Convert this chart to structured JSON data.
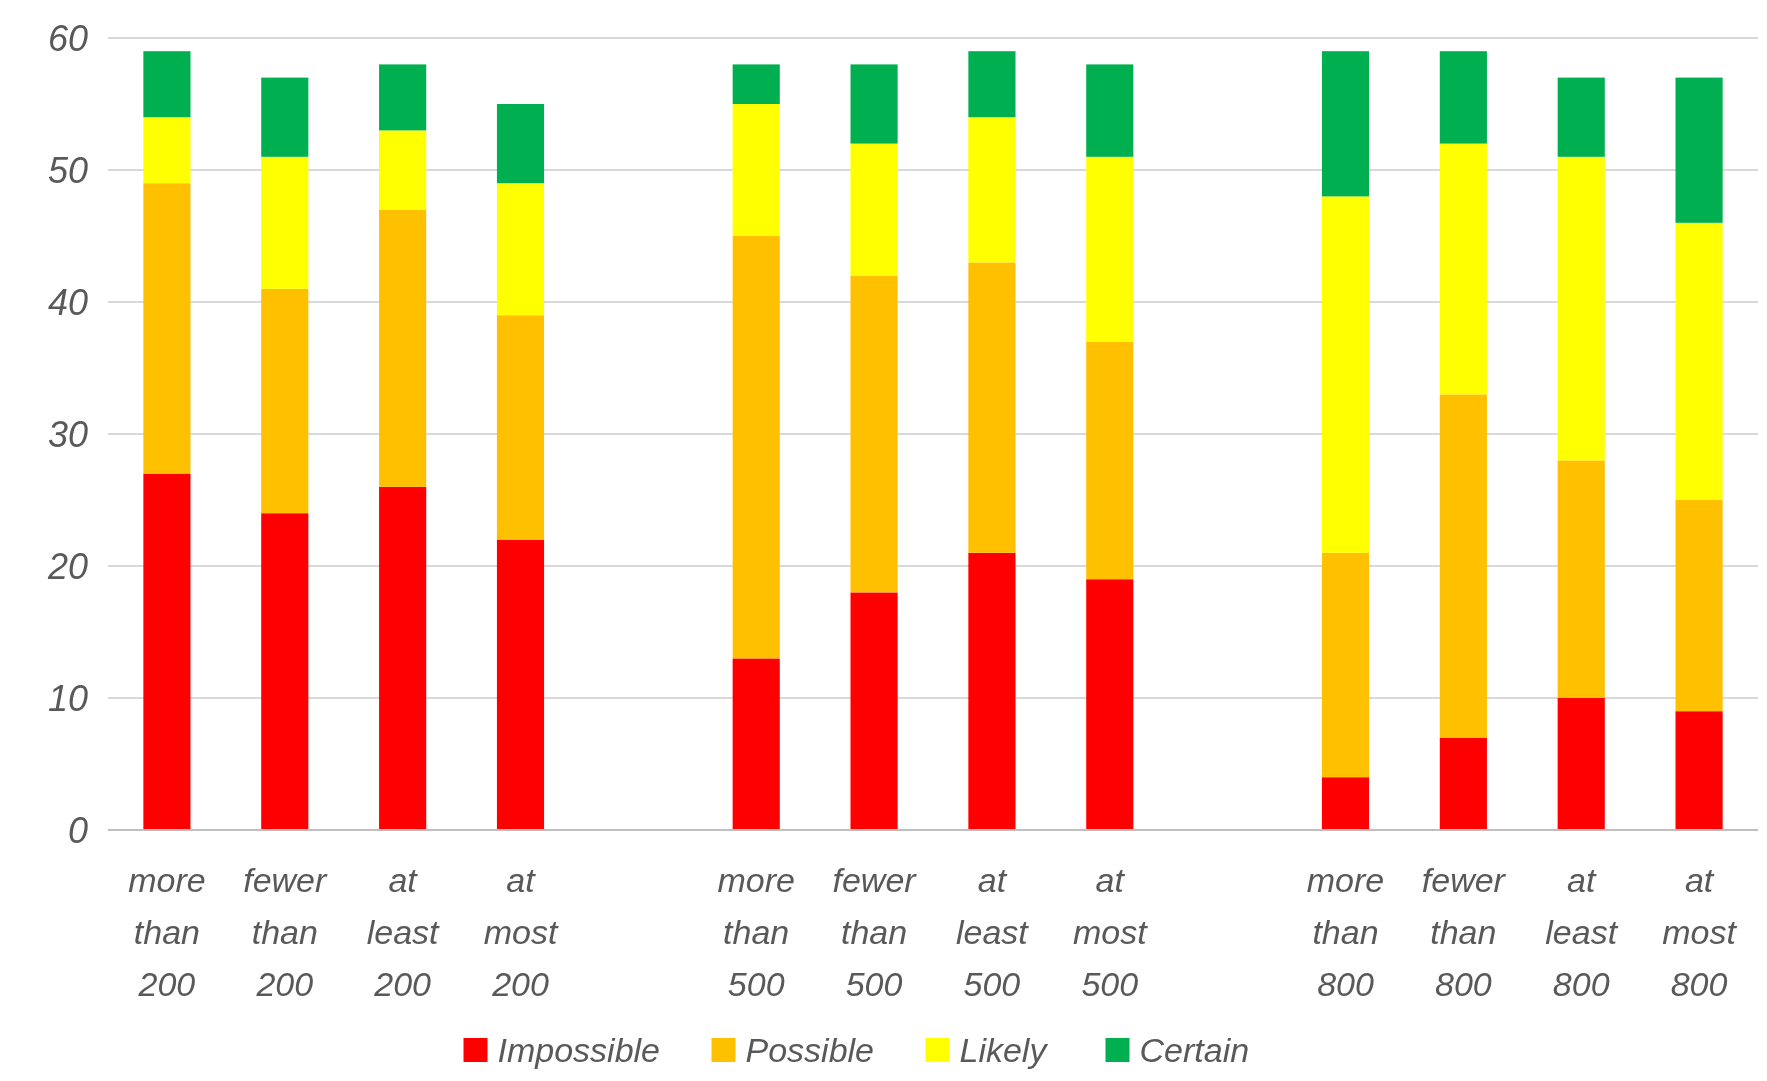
{
  "chart_data": {
    "type": "bar",
    "stacked": true,
    "categories": [
      "more than 200",
      "fewer than 200",
      "at least 200",
      "at most 200",
      null,
      "more than 500",
      "fewer than 500",
      "at least 500",
      "at most 500",
      null,
      "more than 800",
      "fewer than 800",
      "at least 800",
      "at most 800"
    ],
    "series": [
      {
        "name": "Impossible",
        "color": "#ff0000",
        "values": [
          27,
          24,
          26,
          22,
          null,
          13,
          18,
          21,
          19,
          null,
          4,
          7,
          10,
          9
        ]
      },
      {
        "name": "Possible",
        "color": "#ffc000",
        "values": [
          22,
          17,
          21,
          17,
          null,
          32,
          24,
          22,
          18,
          null,
          17,
          26,
          18,
          16
        ]
      },
      {
        "name": "Likely",
        "color": "#ffff00",
        "values": [
          5,
          10,
          6,
          10,
          null,
          10,
          10,
          11,
          14,
          null,
          27,
          19,
          23,
          21
        ]
      },
      {
        "name": "Certain",
        "color": "#00b050",
        "values": [
          5,
          6,
          5,
          6,
          null,
          3,
          6,
          5,
          7,
          null,
          11,
          7,
          6,
          11
        ]
      }
    ],
    "ylim": [
      0,
      60
    ],
    "yticks": [
      0,
      10,
      20,
      30,
      40,
      50,
      60
    ],
    "grid": "y",
    "legend": "bottom"
  }
}
